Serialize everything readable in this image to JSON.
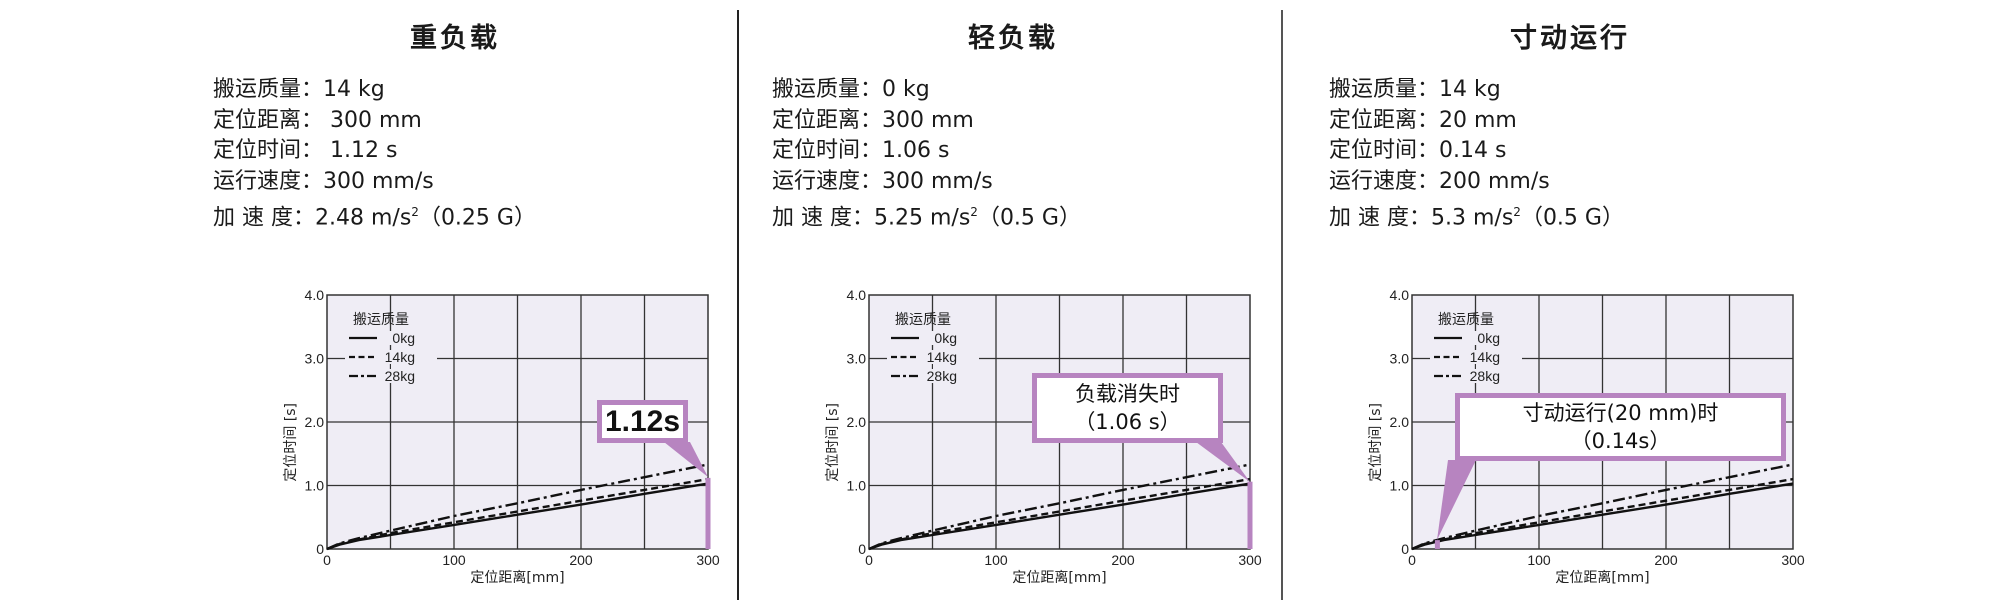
{
  "colors": {
    "accent_purple": "#b784c0",
    "plot_background": "#efedf5",
    "grid": "#333333",
    "line": "#111111"
  },
  "panels": [
    {
      "title": "重负载",
      "specs": [
        {
          "label": "搬运质量：",
          "value": "14 kg"
        },
        {
          "label": "定位距离：",
          "value": " 300 mm"
        },
        {
          "label": "定位时间：",
          "value": " 1.12 s"
        },
        {
          "label": "运行速度：",
          "value": "300 mm/s"
        },
        {
          "label": "加  速  度：",
          "value": "2.48 m/s",
          "sup": "2",
          "suffix": "（0.25 G）"
        }
      ],
      "callout": {
        "lines": [
          "1.12s"
        ]
      }
    },
    {
      "title": "轻负载",
      "specs": [
        {
          "label": "搬运质量：",
          "value": "0 kg"
        },
        {
          "label": "定位距离：",
          "value": "300 mm"
        },
        {
          "label": "定位时间：",
          "value": "1.06 s"
        },
        {
          "label": "运行速度：",
          "value": "300 mm/s"
        },
        {
          "label": "加  速  度：",
          "value": "5.25 m/s",
          "sup": "2",
          "suffix": "（0.5 G）"
        }
      ],
      "callout": {
        "lines": [
          "负载消失时",
          "（1.06 s）"
        ]
      }
    },
    {
      "title": "寸动运行",
      "specs": [
        {
          "label": "搬运质量：",
          "value": "14 kg"
        },
        {
          "label": "定位距离：",
          "value": "20 mm"
        },
        {
          "label": "定位时间：",
          "value": "0.14 s"
        },
        {
          "label": "运行速度：",
          "value": "200 mm/s"
        },
        {
          "label": "加  速  度：",
          "value": "5.3 m/s",
          "sup": "2",
          "suffix": "（0.5 G）"
        }
      ],
      "callout": {
        "lines": [
          "寸动运行(20 mm)时",
          "（0.14s）"
        ]
      }
    }
  ],
  "chart_data": [
    {
      "type": "line",
      "title": "重负载",
      "xlabel": "定位距离[mm]",
      "ylabel": "定位时间 [s]",
      "xlim": [
        0,
        300
      ],
      "ylim": [
        0,
        4.0
      ],
      "xticks": [
        "0",
        "100",
        "200",
        "300"
      ],
      "yticks": [
        "0",
        "1.0",
        "2.0",
        "3.0",
        "4.0"
      ],
      "grid": true,
      "legend": {
        "title": "搬运质量",
        "position": "upper-left",
        "entries": [
          "0kg",
          "14kg",
          "28kg"
        ]
      },
      "x": [
        0,
        10,
        25,
        50,
        100,
        150,
        200,
        250,
        300
      ],
      "series": [
        {
          "name": "0kg",
          "style": "solid",
          "values": [
            0,
            0.07,
            0.14,
            0.22,
            0.38,
            0.54,
            0.7,
            0.87,
            1.03
          ]
        },
        {
          "name": "14kg",
          "style": "dashed",
          "values": [
            0,
            0.08,
            0.15,
            0.25,
            0.42,
            0.59,
            0.76,
            0.93,
            1.1
          ]
        },
        {
          "name": "28kg",
          "style": "dashdot",
          "values": [
            0,
            0.09,
            0.17,
            0.29,
            0.52,
            0.72,
            0.93,
            1.13,
            1.33
          ]
        }
      ],
      "highlight": {
        "x": 300,
        "y": 1.12,
        "label": "1.12s"
      }
    },
    {
      "type": "line",
      "title": "轻负载",
      "xlabel": "定位距离[mm]",
      "ylabel": "定位时间 [s]",
      "xlim": [
        0,
        300
      ],
      "ylim": [
        0,
        4.0
      ],
      "xticks": [
        "0",
        "100",
        "200",
        "300"
      ],
      "yticks": [
        "0",
        "1.0",
        "2.0",
        "3.0",
        "4.0"
      ],
      "grid": true,
      "legend": {
        "title": "搬运质量",
        "position": "upper-left",
        "entries": [
          "0kg",
          "14kg",
          "28kg"
        ]
      },
      "x": [
        0,
        10,
        25,
        50,
        100,
        150,
        200,
        250,
        300
      ],
      "series": [
        {
          "name": "0kg",
          "style": "solid",
          "values": [
            0,
            0.07,
            0.14,
            0.22,
            0.38,
            0.54,
            0.7,
            0.87,
            1.03
          ]
        },
        {
          "name": "14kg",
          "style": "dashed",
          "values": [
            0,
            0.08,
            0.15,
            0.25,
            0.42,
            0.59,
            0.76,
            0.93,
            1.1
          ]
        },
        {
          "name": "28kg",
          "style": "dashdot",
          "values": [
            0,
            0.09,
            0.17,
            0.29,
            0.52,
            0.72,
            0.93,
            1.13,
            1.33
          ]
        }
      ],
      "highlight": {
        "x": 300,
        "y": 1.06,
        "label": "负载消失时（1.06 s）"
      }
    },
    {
      "type": "line",
      "title": "寸动运行",
      "xlabel": "定位距离[mm]",
      "ylabel": "定位时间 [s]",
      "xlim": [
        0,
        300
      ],
      "ylim": [
        0,
        4.0
      ],
      "xticks": [
        "0",
        "100",
        "200",
        "300"
      ],
      "yticks": [
        "0",
        "1.0",
        "2.0",
        "3.0",
        "4.0"
      ],
      "grid": true,
      "legend": {
        "title": "搬运质量",
        "position": "upper-left",
        "entries": [
          "0kg",
          "14kg",
          "28kg"
        ]
      },
      "x": [
        0,
        10,
        25,
        50,
        100,
        150,
        200,
        250,
        300
      ],
      "series": [
        {
          "name": "0kg",
          "style": "solid",
          "values": [
            0,
            0.07,
            0.14,
            0.22,
            0.38,
            0.54,
            0.7,
            0.87,
            1.03
          ]
        },
        {
          "name": "14kg",
          "style": "dashed",
          "values": [
            0,
            0.08,
            0.15,
            0.25,
            0.42,
            0.59,
            0.76,
            0.93,
            1.1
          ]
        },
        {
          "name": "28kg",
          "style": "dashdot",
          "values": [
            0,
            0.09,
            0.17,
            0.29,
            0.52,
            0.72,
            0.93,
            1.13,
            1.33
          ]
        }
      ],
      "highlight": {
        "x": 20,
        "y": 0.14,
        "label": "寸动运行(20 mm)时（0.14s）"
      }
    }
  ]
}
